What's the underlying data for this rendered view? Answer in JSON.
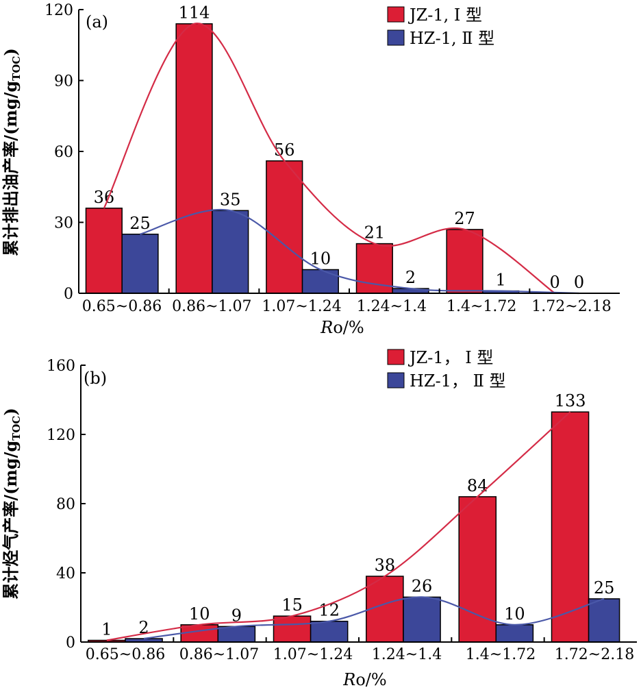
{
  "colors": {
    "red": "#dc1e35",
    "blue": "#3c4799",
    "red_curve": "#d42b46",
    "blue_curve": "#4a58a8"
  },
  "chart_data": [
    {
      "type": "bar",
      "panel_label": "(a)",
      "categories": [
        "0.65~0.86",
        "0.86~1.07",
        "1.07~1.24",
        "1.24~1.4",
        "1.4~1.72",
        "1.72~2.18"
      ],
      "series": [
        {
          "name": "JZ-1, Ⅰ 型",
          "values": [
            36,
            114,
            56,
            21,
            27,
            0
          ],
          "labels": [
            "36",
            "114",
            "56",
            "21",
            "27",
            "0"
          ]
        },
        {
          "name": "HZ-1, Ⅱ 型",
          "values": [
            25,
            35,
            10,
            2,
            1,
            0
          ],
          "labels": [
            "25",
            "35",
            "10",
            "2",
            "1",
            "0"
          ]
        }
      ],
      "xlabel_italic": "R",
      "xlabel_rest": "o/%",
      "ylabel": "累计排出油产率/(mg/g",
      "ylabel_sub": "TOC",
      "ylabel_end": ")",
      "ylim": [
        0,
        120
      ],
      "yticks": [
        0,
        30,
        60,
        90,
        120
      ],
      "grid": false,
      "legend": "top-right"
    },
    {
      "type": "bar",
      "panel_label": "(b)",
      "categories": [
        "0.65~0.86",
        "0.86~1.07",
        "1.07~1.24",
        "1.24~1.4",
        "1.4~1.72",
        "1.72~2.18"
      ],
      "series": [
        {
          "name": "JZ-1， Ⅰ 型",
          "values": [
            1,
            10,
            15,
            38,
            84,
            133
          ],
          "labels": [
            "1",
            "10",
            "15",
            "38",
            "84",
            "133"
          ]
        },
        {
          "name": "HZ-1， Ⅱ 型",
          "values": [
            2,
            9,
            12,
            26,
            10,
            25
          ],
          "labels": [
            "2",
            "9",
            "12",
            "26",
            "10",
            "25"
          ]
        }
      ],
      "xlabel_italic": "R",
      "xlabel_rest": "o/%",
      "ylabel": "累计烃气产率/(mg/g",
      "ylabel_sub": "TOC",
      "ylabel_end": ")",
      "ylim": [
        0,
        160
      ],
      "yticks": [
        0,
        40,
        80,
        120,
        160
      ],
      "grid": false,
      "legend": "top-right"
    }
  ]
}
